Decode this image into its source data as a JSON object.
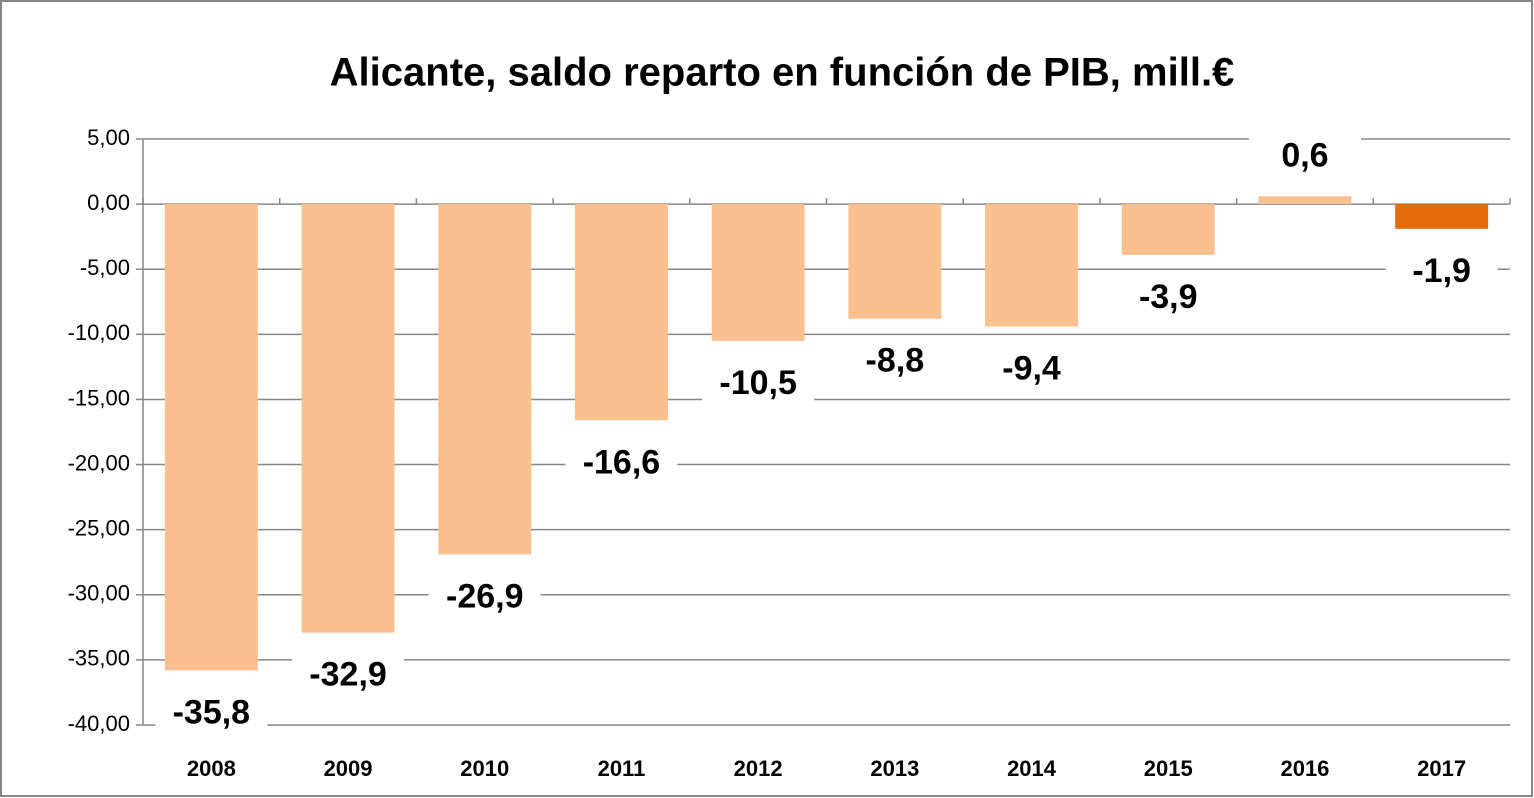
{
  "chart_data": {
    "type": "bar",
    "title": "Alicante, saldo reparto en función de PIB, mill.€",
    "categories": [
      "2008",
      "2009",
      "2010",
      "2011",
      "2012",
      "2013",
      "2014",
      "2015",
      "2016",
      "2017"
    ],
    "values": [
      -35.8,
      -32.9,
      -26.9,
      -16.6,
      -10.5,
      -8.8,
      -9.4,
      -3.9,
      0.6,
      -1.9
    ],
    "value_labels": [
      "-35,8",
      "-32,9",
      "-26,9",
      "-16,6",
      "-10,5",
      "-8,8",
      "-9,4",
      "-3,9",
      "0,6",
      "-1,9"
    ],
    "colors": [
      "#fac090",
      "#fac090",
      "#fac090",
      "#fac090",
      "#fac090",
      "#fac090",
      "#fac090",
      "#fac090",
      "#fac090",
      "#e46c0a"
    ],
    "ylim": [
      -40,
      5
    ],
    "yticks": [
      {
        "value": -40,
        "label": "-40,00"
      },
      {
        "value": -35,
        "label": "-35,00"
      },
      {
        "value": -30,
        "label": "-30,00"
      },
      {
        "value": -25,
        "label": "-25,00"
      },
      {
        "value": -20,
        "label": "-20,00"
      },
      {
        "value": -15,
        "label": "-15,00"
      },
      {
        "value": -10,
        "label": "-10,00"
      },
      {
        "value": -5,
        "label": "-5,00"
      },
      {
        "value": 0,
        "label": "0,00"
      },
      {
        "value": 5,
        "label": "5,00"
      }
    ],
    "grid": true
  }
}
